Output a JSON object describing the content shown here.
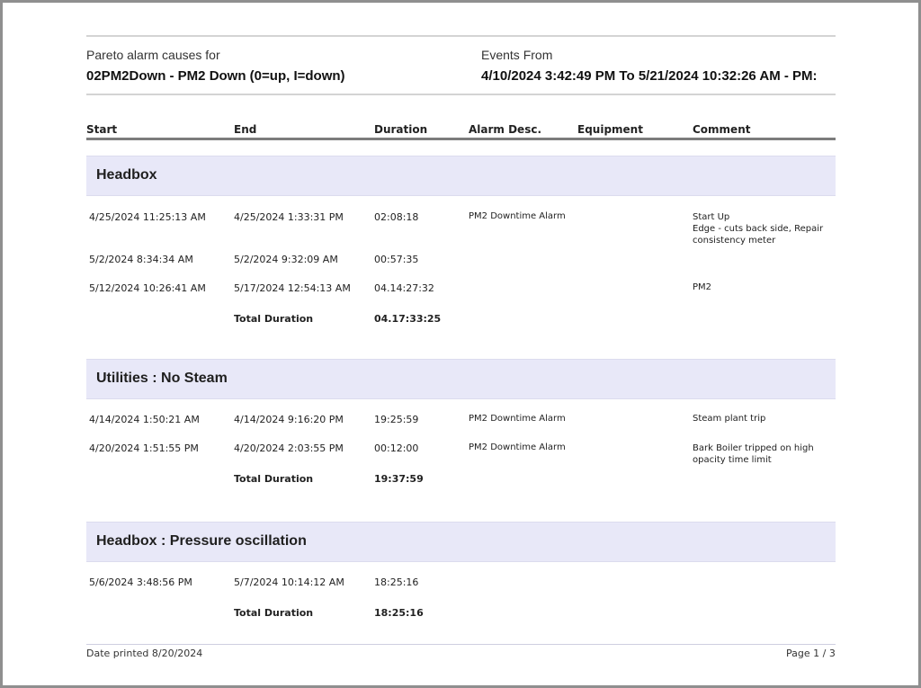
{
  "report": {
    "title_prefix": "Pareto alarm causes for",
    "tag": "02PM2Down - PM2 Down (0=up, I=down)",
    "events_label": "Events From",
    "date_range": "4/10/2024 3:42:49 PM To 5/21/2024 10:32:26 AM - PM:"
  },
  "columns": [
    "Start",
    "End",
    "Duration",
    "Alarm Desc.",
    "Equipment",
    "Comment"
  ],
  "total_label": "Total Duration",
  "groups": [
    {
      "name": "Headbox",
      "rows": [
        {
          "start": "4/25/2024 11:25:13 AM",
          "end": "4/25/2024 1:33:31 PM",
          "duration": "02:08:18",
          "alarm": "PM2 Downtime Alarm",
          "equipment": "",
          "comment": "Start Up\nEdge - cuts back side, Repair consistency meter"
        },
        {
          "start": "5/2/2024 8:34:34 AM",
          "end": "5/2/2024 9:32:09 AM",
          "duration": "00:57:35",
          "alarm": "",
          "equipment": "",
          "comment": ""
        },
        {
          "start": "5/12/2024 10:26:41 AM",
          "end": "5/17/2024 12:54:13 AM",
          "duration": "04.14:27:32",
          "alarm": "",
          "equipment": "",
          "comment": "PM2"
        }
      ],
      "total": "04.17:33:25"
    },
    {
      "name": "Utilities : No Steam",
      "rows": [
        {
          "start": "4/14/2024 1:50:21 AM",
          "end": "4/14/2024 9:16:20 PM",
          "duration": "19:25:59",
          "alarm": "PM2 Downtime Alarm",
          "equipment": "",
          "comment": "Steam plant trip"
        },
        {
          "start": "4/20/2024 1:51:55 PM",
          "end": "4/20/2024 2:03:55 PM",
          "duration": "00:12:00",
          "alarm": "PM2 Downtime Alarm",
          "equipment": "",
          "comment": "Bark Boiler tripped on high opacity time limit"
        }
      ],
      "total": "19:37:59"
    },
    {
      "name": "Headbox : Pressure oscillation",
      "rows": [
        {
          "start": "5/6/2024 3:48:56 PM",
          "end": "5/7/2024 10:14:12 AM",
          "duration": "18:25:16",
          "alarm": "",
          "equipment": "",
          "comment": ""
        }
      ],
      "total": "18:25:16"
    }
  ],
  "footer": {
    "printed": "Date printed 8/20/2024",
    "page": "Page 1 / 3"
  }
}
